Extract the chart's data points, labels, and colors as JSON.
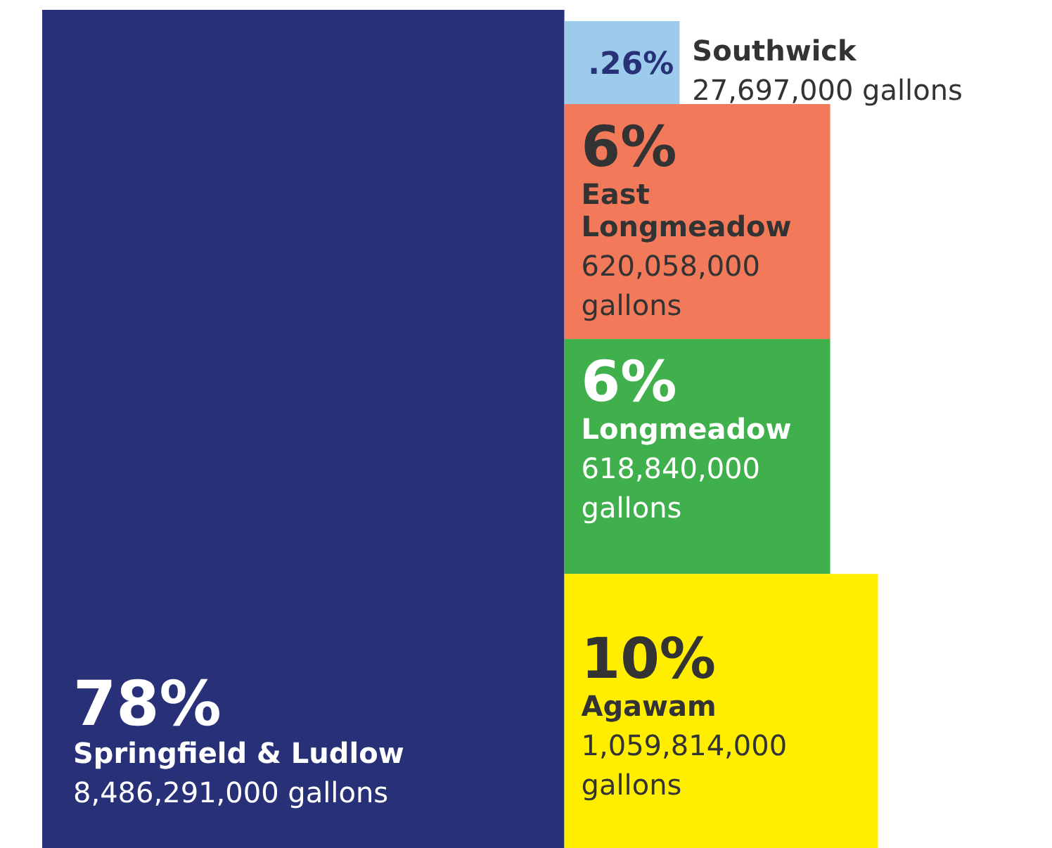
{
  "chart_data": {
    "type": "other",
    "categories": [
      "Springfield & Ludlow",
      "Southwick",
      "East Longmeadow",
      "Longmeadow",
      "Agawam"
    ],
    "values": [
      78,
      0.26,
      6,
      6,
      10
    ],
    "value_labels": [
      "78%",
      ".26%",
      "6%",
      "6%",
      "10%"
    ],
    "colors": [
      "#283078",
      "#9ccbec",
      "#f27a5a",
      "#3fb04b",
      "#ffee00"
    ],
    "annotations": [
      "8,486,291,000 gallons",
      "27,697,000 gallons",
      "620,058,000 gallons",
      "618,840,000 gallons",
      "1,059,814,000 gallons"
    ]
  }
}
